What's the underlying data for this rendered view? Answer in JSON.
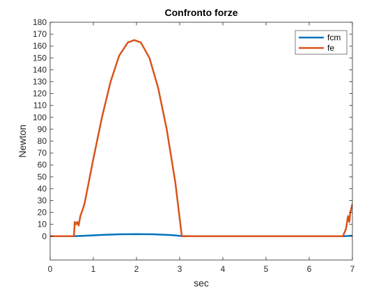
{
  "chart_data": {
    "type": "line",
    "title": "Confronto forze",
    "xlabel": "sec",
    "ylabel": "Newton",
    "xlim": [
      0,
      7
    ],
    "ylim": [
      -20,
      180
    ],
    "x_ticks": [
      0,
      1,
      2,
      3,
      4,
      5,
      6,
      7
    ],
    "y_ticks": [
      0,
      10,
      20,
      30,
      40,
      50,
      60,
      70,
      80,
      90,
      100,
      110,
      120,
      130,
      140,
      150,
      160,
      170,
      180
    ],
    "grid": false,
    "legend_position": "top-right",
    "series": [
      {
        "name": "fcm",
        "color": "#0072BD",
        "x": [
          0,
          0.55,
          0.8,
          1.2,
          1.6,
          2.0,
          2.4,
          2.8,
          3.05,
          3.3,
          4,
          5,
          6,
          6.8,
          7
        ],
        "y": [
          0,
          0,
          0.4,
          1.1,
          1.6,
          1.8,
          1.6,
          1.0,
          0.2,
          0,
          0,
          0,
          0,
          0,
          0.5
        ]
      },
      {
        "name": "fe",
        "color": "#D95319",
        "x": [
          0,
          0.55,
          0.57,
          0.6,
          0.63,
          0.66,
          0.7,
          0.75,
          0.8,
          1.0,
          1.2,
          1.4,
          1.6,
          1.8,
          1.95,
          2.1,
          2.3,
          2.5,
          2.7,
          2.9,
          3.05,
          3.5,
          4,
          5,
          6,
          6.78,
          6.85,
          6.9,
          6.93,
          6.95,
          7.0
        ],
        "y": [
          0,
          0,
          12,
          10,
          12,
          9,
          17,
          22,
          28,
          65,
          100,
          130,
          152,
          163,
          165,
          163,
          150,
          125,
          90,
          45,
          0,
          0,
          0,
          0,
          0,
          0,
          6,
          17,
          12,
          20,
          27
        ]
      }
    ]
  }
}
